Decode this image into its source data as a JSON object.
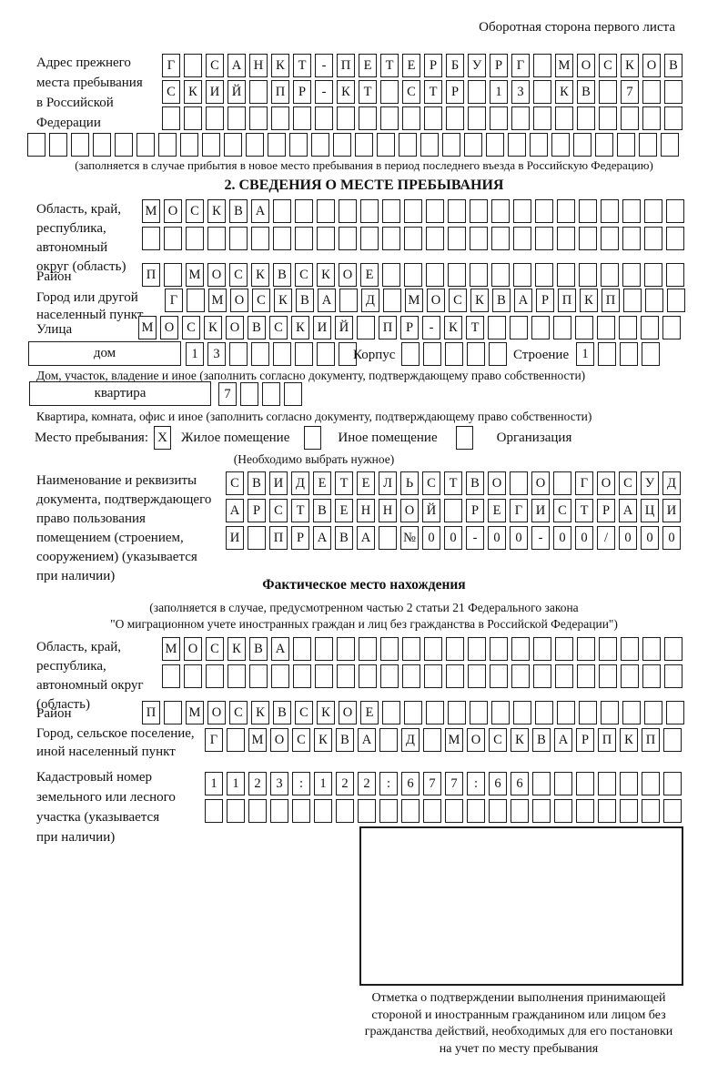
{
  "page_header": "Оборотная сторона первого листа",
  "prev": {
    "label": "Адрес прежнего\nместа пребывания\nв Российской\nФедерации",
    "rows": [
      {
        "count": 24,
        "chars": "Г САНКТ-ПЕТЕРБУРГ МОСКОВ"
      },
      {
        "count": 24,
        "chars": "СКИЙ ПР-КТ СТР 13 КВ 7"
      },
      {
        "count": 24,
        "chars": ""
      },
      {
        "count": 30,
        "chars": ""
      }
    ],
    "note": "(заполняется в случае прибытия в новое место пребывания в период последнего въезда в Российскую Федерацию)"
  },
  "s2": {
    "title": "2. СВЕДЕНИЯ О МЕСТЕ ПРЕБЫВАНИЯ",
    "oblast": {
      "label": "Область, край,\nреспублика,\nавтономный\nокруг (область)",
      "rows": [
        {
          "count": 25,
          "chars": "МОСКВА"
        },
        {
          "count": 25,
          "chars": ""
        }
      ]
    },
    "raion": {
      "label": "Район",
      "row": {
        "count": 25,
        "chars": "П МОСКВСКОЕ"
      }
    },
    "gorod": {
      "label": "Город или другой\nнаселенный пункт",
      "row": {
        "count": 24,
        "chars": "Г МОСКВА Д МОСКВАРПКП"
      }
    },
    "ulitsa": {
      "label": "Улица",
      "row": {
        "count": 25,
        "chars": "МОСКОВСКИЙ ПР-КТ"
      }
    },
    "dom": {
      "label": "дом",
      "row": {
        "count": 8,
        "chars": "13"
      },
      "korpus_label": "Корпус",
      "korpus_row": {
        "count": 5,
        "chars": ""
      },
      "stroenie_label": "Строение",
      "stroenie_row": {
        "count": 4,
        "chars": "1"
      }
    },
    "dom_note": "Дом, участок, владение и иное (заполнить согласно документу, подтверждающему право собственности)",
    "kvartira": {
      "label": "квартира",
      "row": {
        "count": 4,
        "chars": "7"
      }
    },
    "kvartira_note": "Квартира, комната, офис и иное (заполнить согласно документу, подтверждающему право собственности)",
    "mesto": {
      "label": "Место пребывания:",
      "options": [
        {
          "checked": "X",
          "label": "Жилое помещение"
        },
        {
          "checked": "",
          "label": "Иное помещение"
        },
        {
          "checked": "",
          "label": "Организация"
        }
      ],
      "note": "(Необходимо выбрать нужное)"
    },
    "doc": {
      "label": "Наименование и реквизиты\nдокумента, подтверждающего\nправо пользования\nпомещением (строением,\nсооружением) (указывается\nпри наличии)",
      "rows": [
        {
          "count": 21,
          "chars": "СВИДЕТЕЛЬСТВО О ГОСУД"
        },
        {
          "count": 21,
          "chars": "АРСТВЕННОЙ РЕГИСТРАЦИ"
        },
        {
          "count": 21,
          "chars": "И ПРАВА №00-00-00/000"
        }
      ]
    }
  },
  "fact": {
    "title": "Фактическое место нахождения",
    "note_line1": "(заполняется в случае, предусмотренном частью 2 статьи 21 Федерального закона",
    "note_line2": "\"О миграционном учете иностранных граждан и лиц без гражданства в Российской Федерации\")",
    "oblast": {
      "label": "Область, край,\nреспублика,\nавтономный округ\n(область)",
      "rows": [
        {
          "count": 24,
          "chars": "МОСКВА"
        },
        {
          "count": 24,
          "chars": ""
        }
      ]
    },
    "raion": {
      "label": "Район",
      "row": {
        "count": 25,
        "chars": "П МОСКВСКОЕ"
      }
    },
    "gorod": {
      "label": "Город, сельское поселение,\nиной населенный пункт",
      "row": {
        "count": 22,
        "chars": "Г МОСКВА Д МОСКВАРПКП"
      }
    },
    "kadastr": {
      "label": "Кадастровый номер\nземельного или лесного\nучастка (указывается\nпри наличии)",
      "rows": [
        {
          "count": 22,
          "chars": "1123:122:677:66"
        },
        {
          "count": 22,
          "chars": ""
        }
      ]
    },
    "stamp_note": "Отметка о подтверждении выполнения принимающей\nстороной и иностранным гражданином или лицом без\nгражданства действий, необходимых для его постановки\nна учет по месту пребывания"
  }
}
